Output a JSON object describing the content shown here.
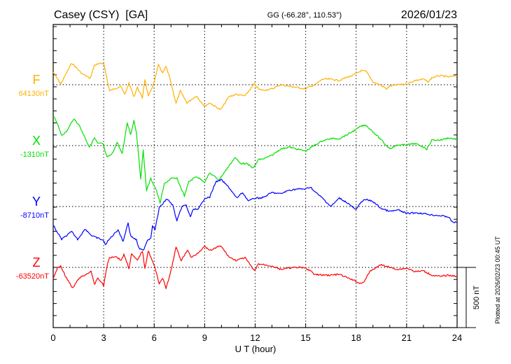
{
  "header": {
    "station": "Casey (CSY)  [GA]",
    "coords": "GG (-66.28°, 110.53°)",
    "date": "2026/01/23"
  },
  "footer": {
    "plotted": "Plotted at 2026/02/23 00:45 UT"
  },
  "chart_data": {
    "type": "line",
    "title": "Casey (CSY)  [GA]",
    "xlabel": "U T (hour)",
    "xlim": [
      0,
      24
    ],
    "xticks": [
      "0",
      "3",
      "6",
      "9",
      "12",
      "15",
      "18",
      "21",
      "24"
    ],
    "scale_bar": "500 nT",
    "grid": "dotted, every 3 hours and at each component baseline",
    "series": [
      {
        "name": "F",
        "baseline_label": "64130nT",
        "color": "#ffb000",
        "t": [
          0,
          0.45,
          1.1,
          1.7,
          2.2,
          2.45,
          3.0,
          3.35,
          4.0,
          4.25,
          4.5,
          4.8,
          5.0,
          5.3,
          5.45,
          5.65,
          6.0,
          6.25,
          6.5,
          6.7,
          6.95,
          7.3,
          7.55,
          7.95,
          8.5,
          9.0,
          9.3,
          9.95,
          10.45,
          10.85,
          11.4,
          11.95,
          12.25,
          12.5,
          13,
          13.5,
          14,
          14.5,
          15,
          15.3,
          15.5,
          16,
          16.5,
          17,
          17.5,
          17.8,
          18,
          18.3,
          18.6,
          19,
          19.5,
          19.8,
          20,
          20.5,
          21,
          21.5,
          22,
          22.3,
          22.5,
          23,
          23.5,
          24
        ],
        "offset_nT": [
          104,
          6,
          180,
          93,
          52,
          163,
          180,
          -52,
          -12,
          -81,
          12,
          -99,
          -23,
          -110,
          46,
          -99,
          17,
          168,
          93,
          151,
          46,
          -157,
          -52,
          -151,
          -93,
          -180,
          -151,
          -209,
          -99,
          -81,
          -93,
          6,
          -41,
          -46,
          -35,
          0,
          -12,
          -23,
          -35,
          -12,
          -6,
          46,
          46,
          35,
          64,
          76,
          93,
          116,
          110,
          23,
          -6,
          -35,
          -12,
          0,
          6,
          35,
          46,
          23,
          58,
          76,
          64,
          76
        ]
      },
      {
        "name": "X",
        "baseline_label": "-1310nT",
        "color": "#00e000",
        "t": [
          0,
          0.1,
          0.5,
          0.8,
          1.2,
          1.5,
          1.9,
          2.15,
          2.45,
          2.65,
          2.95,
          3.2,
          3.5,
          3.8,
          4.1,
          4.4,
          4.6,
          4.8,
          4.95,
          5.2,
          5.35,
          5.55,
          5.8,
          6.1,
          6.35,
          6.6,
          7.0,
          7.35,
          7.8,
          8.05,
          8.5,
          9.0,
          9.3,
          9.85,
          10.45,
          10.8,
          11.1,
          11.5,
          11.9,
          12.2,
          12.5,
          13,
          13.5,
          14,
          14.5,
          15,
          15.5,
          16,
          16.5,
          17,
          17.5,
          18,
          18.3,
          18.6,
          19,
          19.5,
          19.8,
          20,
          20.5,
          21,
          21.5,
          22,
          22.2,
          22.5,
          23,
          23.5,
          24
        ],
        "offset_nT": [
          238,
          232,
          87,
          116,
          221,
          180,
          64,
          -12,
          64,
          17,
          17,
          -99,
          -70,
          29,
          -70,
          192,
          93,
          209,
          105,
          -273,
          -41,
          -372,
          -273,
          -360,
          -476,
          -319,
          -273,
          -273,
          -418,
          -302,
          -256,
          -302,
          -227,
          -285,
          -168,
          -99,
          -145,
          -151,
          -186,
          -116,
          -110,
          -81,
          -29,
          -12,
          -29,
          -46,
          0,
          41,
          58,
          58,
          93,
          134,
          163,
          168,
          116,
          46,
          0,
          -23,
          6,
          6,
          17,
          -12,
          -29,
          46,
          46,
          64,
          52
        ]
      },
      {
        "name": "Y",
        "baseline_label": "-8710nT",
        "color": "#0000ff",
        "t": [
          0,
          0.5,
          1.1,
          1.45,
          1.9,
          2.3,
          2.95,
          3.1,
          3.4,
          3.85,
          4.15,
          4.45,
          4.6,
          4.95,
          5.1,
          5.35,
          5.6,
          5.8,
          5.9,
          6.05,
          6.3,
          6.75,
          7.1,
          7.35,
          7.65,
          7.9,
          8.15,
          8.35,
          8.6,
          9.0,
          9.3,
          9.65,
          10.0,
          10.45,
          10.9,
          11.25,
          11.6,
          12.0,
          12.25,
          12.5,
          13,
          13.5,
          14,
          14.5,
          15,
          15.3,
          15.5,
          16,
          16.5,
          17,
          17.5,
          18,
          18.3,
          18.6,
          19,
          19.5,
          20,
          20.5,
          21,
          21.5,
          22,
          22.5,
          23,
          23.5,
          23.7,
          24
        ],
        "offset_nT": [
          -157,
          -273,
          -209,
          -273,
          -186,
          -244,
          -279,
          -314,
          -262,
          -192,
          -290,
          -134,
          -244,
          -279,
          -349,
          -366,
          -279,
          -262,
          -157,
          -192,
          -12,
          64,
          12,
          -122,
          0,
          12,
          -87,
          -17,
          -29,
          70,
          76,
          203,
          221,
          157,
          70,
          116,
          46,
          70,
          70,
          76,
          116,
          105,
          134,
          145,
          145,
          163,
          128,
          70,
          0,
          70,
          29,
          -29,
          41,
          58,
          41,
          -17,
          -41,
          -29,
          -58,
          -52,
          -58,
          -70,
          -76,
          -87,
          -128,
          -134
        ]
      },
      {
        "name": "Z",
        "baseline_label": "-63520nT",
        "color": "#ff0000",
        "t": [
          0,
          0.25,
          0.45,
          0.7,
          1.15,
          1.55,
          1.9,
          2.25,
          2.45,
          2.65,
          2.85,
          3.0,
          3.2,
          3.35,
          3.7,
          4.05,
          4.2,
          4.5,
          4.65,
          5.0,
          5.3,
          5.45,
          5.65,
          5.85,
          6.05,
          6.3,
          6.5,
          6.7,
          6.95,
          7.3,
          7.6,
          8.0,
          8.2,
          8.5,
          9.0,
          9.3,
          9.95,
          10.45,
          10.85,
          11.4,
          11.95,
          12.2,
          12.5,
          13,
          13.5,
          14,
          14.5,
          15,
          15.3,
          15.5,
          16,
          16.5,
          17,
          17.5,
          18,
          18.2,
          18.5,
          18.8,
          19,
          19.5,
          20,
          20.5,
          21,
          21.5,
          22,
          22.5,
          23,
          23.5,
          24
        ],
        "offset_nT": [
          -93,
          -6,
          12,
          -64,
          -174,
          -87,
          -64,
          -29,
          -145,
          -87,
          -122,
          -151,
          12,
          81,
          93,
          58,
          110,
          -6,
          110,
          58,
          139,
          -6,
          139,
          70,
          -6,
          -134,
          -87,
          -174,
          -58,
          168,
          58,
          145,
          81,
          110,
          174,
          139,
          180,
          87,
          58,
          81,
          -29,
          29,
          23,
          12,
          -17,
          -6,
          0,
          -6,
          -29,
          -58,
          -64,
          -64,
          -58,
          -87,
          -116,
          -134,
          -116,
          -35,
          -17,
          23,
          0,
          -17,
          -6,
          -35,
          -29,
          -64,
          -76,
          -64,
          -76
        ]
      }
    ]
  }
}
